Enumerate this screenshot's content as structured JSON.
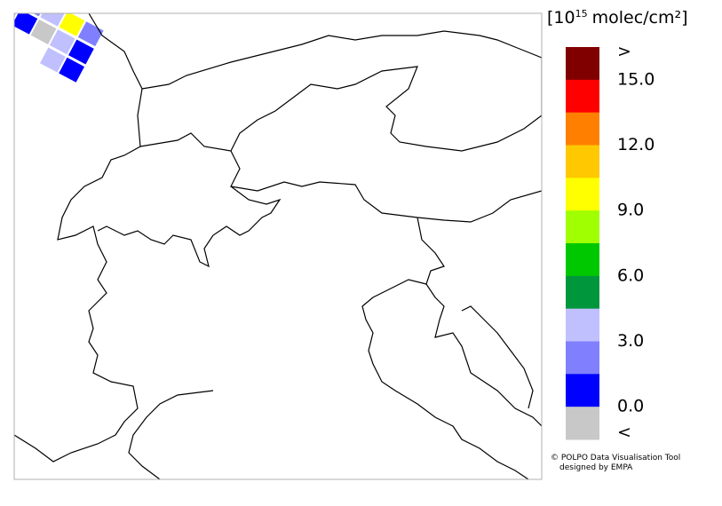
{
  "legend": {
    "unit_prefix": "[10",
    "unit_exponent": "15",
    "unit_suffix": "molec/cm²]",
    "colors": [
      "#800000",
      "#ff0000",
      "#ff8000",
      "#ffc800",
      "#ffff00",
      "#a0ff00",
      "#00c800",
      "#00963c",
      "#c0c0ff",
      "#8080ff",
      "#0000ff",
      "#c8c8c8"
    ],
    "labels": [
      ">",
      "15.0",
      "12.0",
      "9.0",
      "6.0",
      "3.0",
      "0.0",
      "<"
    ]
  },
  "credit": {
    "line1": "© POLPO Data Visualisation Tool",
    "line2": "designed by EMPA"
  }
}
